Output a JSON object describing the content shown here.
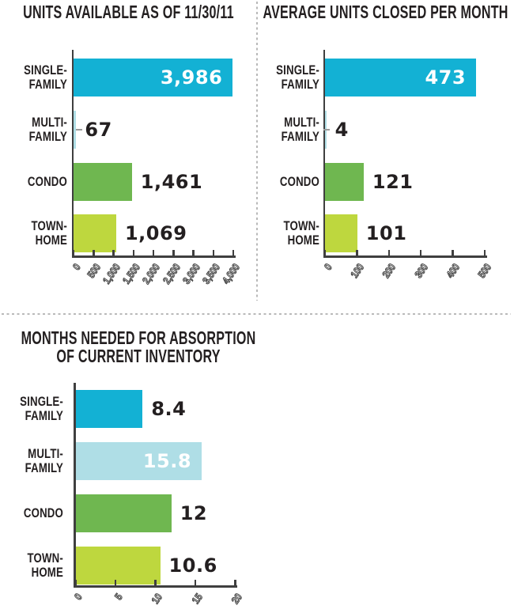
{
  "page": {
    "background": "#ffffff"
  },
  "colors": {
    "single_family": "#13b1d4",
    "multi_family": "#afdee6",
    "condo": "#6fb750",
    "town_home": "#bed73e",
    "text_dark": "#231f20",
    "axis": "#3f3f3f",
    "divider_dotted": "#b9b9b9",
    "category_tick_dash": "#9a9a9a",
    "value_inside": "#ffffff"
  },
  "chart_data": [
    {
      "type": "bar",
      "orientation": "horizontal",
      "title": "UNITS AVAILABLE AS OF 11/30/11",
      "categories": [
        "SINGLE-FAMILY",
        "MULTI-FAMILY",
        "CONDO",
        "TOWN-HOME"
      ],
      "category_lines": [
        [
          "SINGLE-",
          "FAMILY"
        ],
        [
          "MULTI-",
          "FAMILY"
        ],
        [
          "CONDO"
        ],
        [
          "TOWN-",
          "HOME"
        ]
      ],
      "values": [
        3986,
        67,
        1461,
        1069
      ],
      "value_labels": [
        "3,986",
        "67",
        "1,461",
        "1,069"
      ],
      "value_label_inside": [
        true,
        false,
        false,
        false
      ],
      "bar_colors": [
        "#13b1d4",
        "#afdee6",
        "#6fb750",
        "#bed73e"
      ],
      "xlim": [
        0,
        4000
      ],
      "xticks": [
        "0",
        "500",
        "1,000",
        "1,500",
        "2,000",
        "2,500",
        "3,000",
        "3,500",
        "4,000"
      ],
      "grid": false,
      "legend": false
    },
    {
      "type": "bar",
      "orientation": "horizontal",
      "title": "AVERAGE UNITS CLOSED PER MONTH",
      "categories": [
        "SINGLE-FAMILY",
        "MULTI-FAMILY",
        "CONDO",
        "TOWN-HOME"
      ],
      "category_lines": [
        [
          "SINGLE-",
          "FAMILY"
        ],
        [
          "MULTI-",
          "FAMILY"
        ],
        [
          "CONDO"
        ],
        [
          "TOWN-",
          "HOME"
        ]
      ],
      "values": [
        473,
        4,
        121,
        101
      ],
      "value_labels": [
        "473",
        "4",
        "121",
        "101"
      ],
      "value_label_inside": [
        true,
        false,
        false,
        false
      ],
      "bar_colors": [
        "#13b1d4",
        "#afdee6",
        "#6fb750",
        "#bed73e"
      ],
      "xlim": [
        0,
        500
      ],
      "xticks": [
        "0",
        "100",
        "200",
        "300",
        "400",
        "500"
      ],
      "grid": false,
      "legend": false
    },
    {
      "type": "bar",
      "orientation": "horizontal",
      "title": "MONTHS NEEDED FOR ABSORPTION OF CURRENT INVENTORY",
      "title_lines": [
        "MONTHS NEEDED FOR ABSORPTION",
        "OF CURRENT INVENTORY"
      ],
      "categories": [
        "SINGLE-FAMILY",
        "MULTI-FAMILY",
        "CONDO",
        "TOWN-HOME"
      ],
      "category_lines": [
        [
          "SINGLE-",
          "FAMILY"
        ],
        [
          "MULTI-",
          "FAMILY"
        ],
        [
          "CONDO"
        ],
        [
          "TOWN-",
          "HOME"
        ]
      ],
      "values": [
        8.4,
        15.8,
        12,
        10.6
      ],
      "value_labels": [
        "8.4",
        "15.8",
        "12",
        "10.6"
      ],
      "value_label_inside": [
        false,
        true,
        false,
        false
      ],
      "bar_colors": [
        "#13b1d4",
        "#afdee6",
        "#6fb750",
        "#bed73e"
      ],
      "xlim": [
        0,
        20
      ],
      "xticks": [
        "0",
        "5",
        "10",
        "15",
        "20"
      ],
      "grid": false,
      "legend": false
    }
  ]
}
